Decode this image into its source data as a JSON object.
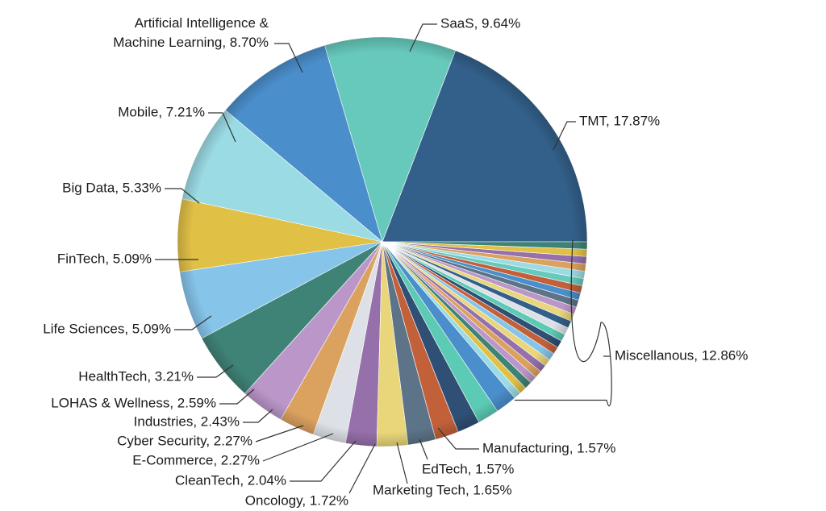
{
  "chart_data": {
    "type": "pie",
    "title": "",
    "start_angle_deg": 0,
    "direction": "counterclockwise",
    "slices": [
      {
        "label": "TMT, 17.87%",
        "value": 17.87,
        "color": "#33608a"
      },
      {
        "label": "SaaS, 9.64%",
        "value": 9.64,
        "color": "#66c9bb"
      },
      {
        "label": "Artificial Intelligence &",
        "label2": "Machine Learning, 8.70%",
        "value": 8.7,
        "color": "#4a8ecb"
      },
      {
        "label": "Mobile, 7.21%",
        "value": 7.21,
        "color": "#9bdbe4"
      },
      {
        "label": "Big Data, 5.33%",
        "value": 5.33,
        "color": "#e1c046"
      },
      {
        "label": "FinTech, 5.09%",
        "value": 5.09,
        "color": "#86c4ea"
      },
      {
        "label": "Life Sciences, 5.09%",
        "value": 5.09,
        "color": "#3f8377"
      },
      {
        "label": "HealthTech, 3.21%",
        "value": 3.21,
        "color": "#bb97c9"
      },
      {
        "label": "LOHAS & Wellness, 2.59%",
        "value": 2.59,
        "color": "#dba15f"
      },
      {
        "label": "Industries, 2.43%",
        "value": 2.43,
        "color": "#dde1e7"
      },
      {
        "label": "Cyber Security, 2.27%",
        "value": 2.27,
        "color": "#9670aa"
      },
      {
        "label": "E-Commerce, 2.27%",
        "value": 2.27,
        "color": "#e9d67a"
      },
      {
        "label": "CleanTech, 2.04%",
        "value": 2.04,
        "color": "#5d7488"
      },
      {
        "label": "Oncology, 1.72%",
        "value": 1.72,
        "color": "#c2603a"
      },
      {
        "label": "Marketing Tech, 1.65%",
        "value": 1.65,
        "color": "#2f4f74"
      },
      {
        "label": "EdTech, 1.57%",
        "value": 1.57,
        "color": "#5ccbb5"
      },
      {
        "label": "Manufacturing, 1.57%",
        "value": 1.57,
        "color": "#4a8ecb"
      },
      {
        "label": "Miscellanous, 12.86%",
        "value": 12.86,
        "color": "#d9d9d9",
        "grouped": true
      }
    ],
    "misc_subslice_colors": [
      "#9bdbe4",
      "#e1c046",
      "#3f8377",
      "#bb97c9",
      "#dba15f",
      "#9670aa",
      "#e9d67a",
      "#86c4ea",
      "#c2603a",
      "#2f4f74",
      "#5ccbb5",
      "#dde1e7",
      "#33608a",
      "#e9d67a",
      "#bb97c9",
      "#5d7488",
      "#4a8ecb",
      "#c2603a",
      "#66c9bb",
      "#9bdbe4",
      "#dba15f",
      "#9670aa",
      "#e1c046",
      "#3f8377"
    ]
  }
}
